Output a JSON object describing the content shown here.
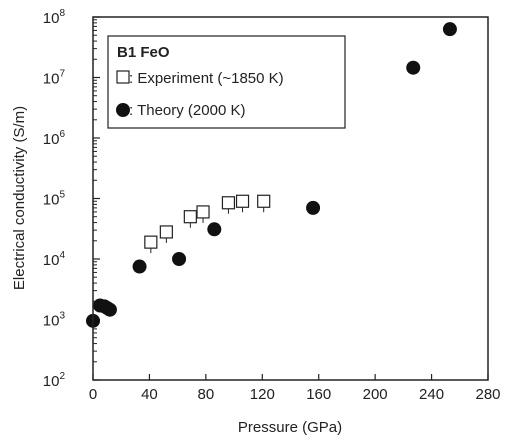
{
  "chart_data": {
    "type": "scatter",
    "xlabel": "Pressure (GPa)",
    "ylabel": "Electrical conductivity (S/m)",
    "xlim": [
      0,
      280
    ],
    "ylim": [
      100,
      100000000
    ],
    "yscale": "log",
    "x_ticks": [
      "0",
      "40",
      "80",
      "120",
      "160",
      "200",
      "240",
      "280"
    ],
    "y_ticks": [
      {
        "base": "10",
        "exp": "2"
      },
      {
        "base": "10",
        "exp": "3"
      },
      {
        "base": "10",
        "exp": "4"
      },
      {
        "base": "10",
        "exp": "5"
      },
      {
        "base": "10",
        "exp": "6"
      },
      {
        "base": "10",
        "exp": "7"
      },
      {
        "base": "10",
        "exp": "8"
      }
    ],
    "grid": false,
    "legend": {
      "title": "B1 FeO",
      "placement": "top-left",
      "entries": [
        {
          "symbol": "□",
          "label": ": Experiment (~1850 K)"
        },
        {
          "symbol": "●",
          "label": ": Theory (2000 K)"
        }
      ]
    },
    "series": [
      {
        "name": "Experiment (~1850 K)",
        "marker": "open-square",
        "points": [
          {
            "x": 41,
            "y": 19000
          },
          {
            "x": 52,
            "y": 28000
          },
          {
            "x": 69,
            "y": 50000
          },
          {
            "x": 78,
            "y": 60000
          },
          {
            "x": 96,
            "y": 85000
          },
          {
            "x": 106,
            "y": 90000
          },
          {
            "x": 121,
            "y": 90000
          }
        ]
      },
      {
        "name": "Theory (2000 K)",
        "marker": "filled-circle",
        "points": [
          {
            "x": 0,
            "y": 950
          },
          {
            "x": 5,
            "y": 1700
          },
          {
            "x": 8,
            "y": 1650
          },
          {
            "x": 10,
            "y": 1550
          },
          {
            "x": 12,
            "y": 1450
          },
          {
            "x": 33,
            "y": 7500
          },
          {
            "x": 61,
            "y": 10000
          },
          {
            "x": 86,
            "y": 31000
          },
          {
            "x": 156,
            "y": 70000
          },
          {
            "x": 227,
            "y": 14500000
          },
          {
            "x": 253,
            "y": 63000000
          }
        ]
      }
    ]
  }
}
